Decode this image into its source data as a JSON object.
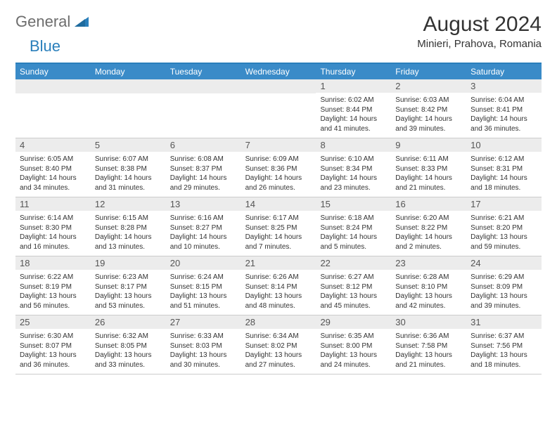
{
  "logo": {
    "general": "General",
    "blue": "Blue"
  },
  "title": "August 2024",
  "subtitle": "Minieri, Prahova, Romania",
  "colors": {
    "header_bg": "#3a8bc8",
    "header_border": "#2a7fbb",
    "daynum_bg": "#ececec",
    "text": "#333333"
  },
  "weekdays": [
    "Sunday",
    "Monday",
    "Tuesday",
    "Wednesday",
    "Thursday",
    "Friday",
    "Saturday"
  ],
  "weeks": [
    [
      {
        "num": "",
        "lines": []
      },
      {
        "num": "",
        "lines": []
      },
      {
        "num": "",
        "lines": []
      },
      {
        "num": "",
        "lines": []
      },
      {
        "num": "1",
        "lines": [
          "Sunrise: 6:02 AM",
          "Sunset: 8:44 PM",
          "Daylight: 14 hours",
          "and 41 minutes."
        ]
      },
      {
        "num": "2",
        "lines": [
          "Sunrise: 6:03 AM",
          "Sunset: 8:42 PM",
          "Daylight: 14 hours",
          "and 39 minutes."
        ]
      },
      {
        "num": "3",
        "lines": [
          "Sunrise: 6:04 AM",
          "Sunset: 8:41 PM",
          "Daylight: 14 hours",
          "and 36 minutes."
        ]
      }
    ],
    [
      {
        "num": "4",
        "lines": [
          "Sunrise: 6:05 AM",
          "Sunset: 8:40 PM",
          "Daylight: 14 hours",
          "and 34 minutes."
        ]
      },
      {
        "num": "5",
        "lines": [
          "Sunrise: 6:07 AM",
          "Sunset: 8:38 PM",
          "Daylight: 14 hours",
          "and 31 minutes."
        ]
      },
      {
        "num": "6",
        "lines": [
          "Sunrise: 6:08 AM",
          "Sunset: 8:37 PM",
          "Daylight: 14 hours",
          "and 29 minutes."
        ]
      },
      {
        "num": "7",
        "lines": [
          "Sunrise: 6:09 AM",
          "Sunset: 8:36 PM",
          "Daylight: 14 hours",
          "and 26 minutes."
        ]
      },
      {
        "num": "8",
        "lines": [
          "Sunrise: 6:10 AM",
          "Sunset: 8:34 PM",
          "Daylight: 14 hours",
          "and 23 minutes."
        ]
      },
      {
        "num": "9",
        "lines": [
          "Sunrise: 6:11 AM",
          "Sunset: 8:33 PM",
          "Daylight: 14 hours",
          "and 21 minutes."
        ]
      },
      {
        "num": "10",
        "lines": [
          "Sunrise: 6:12 AM",
          "Sunset: 8:31 PM",
          "Daylight: 14 hours",
          "and 18 minutes."
        ]
      }
    ],
    [
      {
        "num": "11",
        "lines": [
          "Sunrise: 6:14 AM",
          "Sunset: 8:30 PM",
          "Daylight: 14 hours",
          "and 16 minutes."
        ]
      },
      {
        "num": "12",
        "lines": [
          "Sunrise: 6:15 AM",
          "Sunset: 8:28 PM",
          "Daylight: 14 hours",
          "and 13 minutes."
        ]
      },
      {
        "num": "13",
        "lines": [
          "Sunrise: 6:16 AM",
          "Sunset: 8:27 PM",
          "Daylight: 14 hours",
          "and 10 minutes."
        ]
      },
      {
        "num": "14",
        "lines": [
          "Sunrise: 6:17 AM",
          "Sunset: 8:25 PM",
          "Daylight: 14 hours",
          "and 7 minutes."
        ]
      },
      {
        "num": "15",
        "lines": [
          "Sunrise: 6:18 AM",
          "Sunset: 8:24 PM",
          "Daylight: 14 hours",
          "and 5 minutes."
        ]
      },
      {
        "num": "16",
        "lines": [
          "Sunrise: 6:20 AM",
          "Sunset: 8:22 PM",
          "Daylight: 14 hours",
          "and 2 minutes."
        ]
      },
      {
        "num": "17",
        "lines": [
          "Sunrise: 6:21 AM",
          "Sunset: 8:20 PM",
          "Daylight: 13 hours",
          "and 59 minutes."
        ]
      }
    ],
    [
      {
        "num": "18",
        "lines": [
          "Sunrise: 6:22 AM",
          "Sunset: 8:19 PM",
          "Daylight: 13 hours",
          "and 56 minutes."
        ]
      },
      {
        "num": "19",
        "lines": [
          "Sunrise: 6:23 AM",
          "Sunset: 8:17 PM",
          "Daylight: 13 hours",
          "and 53 minutes."
        ]
      },
      {
        "num": "20",
        "lines": [
          "Sunrise: 6:24 AM",
          "Sunset: 8:15 PM",
          "Daylight: 13 hours",
          "and 51 minutes."
        ]
      },
      {
        "num": "21",
        "lines": [
          "Sunrise: 6:26 AM",
          "Sunset: 8:14 PM",
          "Daylight: 13 hours",
          "and 48 minutes."
        ]
      },
      {
        "num": "22",
        "lines": [
          "Sunrise: 6:27 AM",
          "Sunset: 8:12 PM",
          "Daylight: 13 hours",
          "and 45 minutes."
        ]
      },
      {
        "num": "23",
        "lines": [
          "Sunrise: 6:28 AM",
          "Sunset: 8:10 PM",
          "Daylight: 13 hours",
          "and 42 minutes."
        ]
      },
      {
        "num": "24",
        "lines": [
          "Sunrise: 6:29 AM",
          "Sunset: 8:09 PM",
          "Daylight: 13 hours",
          "and 39 minutes."
        ]
      }
    ],
    [
      {
        "num": "25",
        "lines": [
          "Sunrise: 6:30 AM",
          "Sunset: 8:07 PM",
          "Daylight: 13 hours",
          "and 36 minutes."
        ]
      },
      {
        "num": "26",
        "lines": [
          "Sunrise: 6:32 AM",
          "Sunset: 8:05 PM",
          "Daylight: 13 hours",
          "and 33 minutes."
        ]
      },
      {
        "num": "27",
        "lines": [
          "Sunrise: 6:33 AM",
          "Sunset: 8:03 PM",
          "Daylight: 13 hours",
          "and 30 minutes."
        ]
      },
      {
        "num": "28",
        "lines": [
          "Sunrise: 6:34 AM",
          "Sunset: 8:02 PM",
          "Daylight: 13 hours",
          "and 27 minutes."
        ]
      },
      {
        "num": "29",
        "lines": [
          "Sunrise: 6:35 AM",
          "Sunset: 8:00 PM",
          "Daylight: 13 hours",
          "and 24 minutes."
        ]
      },
      {
        "num": "30",
        "lines": [
          "Sunrise: 6:36 AM",
          "Sunset: 7:58 PM",
          "Daylight: 13 hours",
          "and 21 minutes."
        ]
      },
      {
        "num": "31",
        "lines": [
          "Sunrise: 6:37 AM",
          "Sunset: 7:56 PM",
          "Daylight: 13 hours",
          "and 18 minutes."
        ]
      }
    ]
  ]
}
